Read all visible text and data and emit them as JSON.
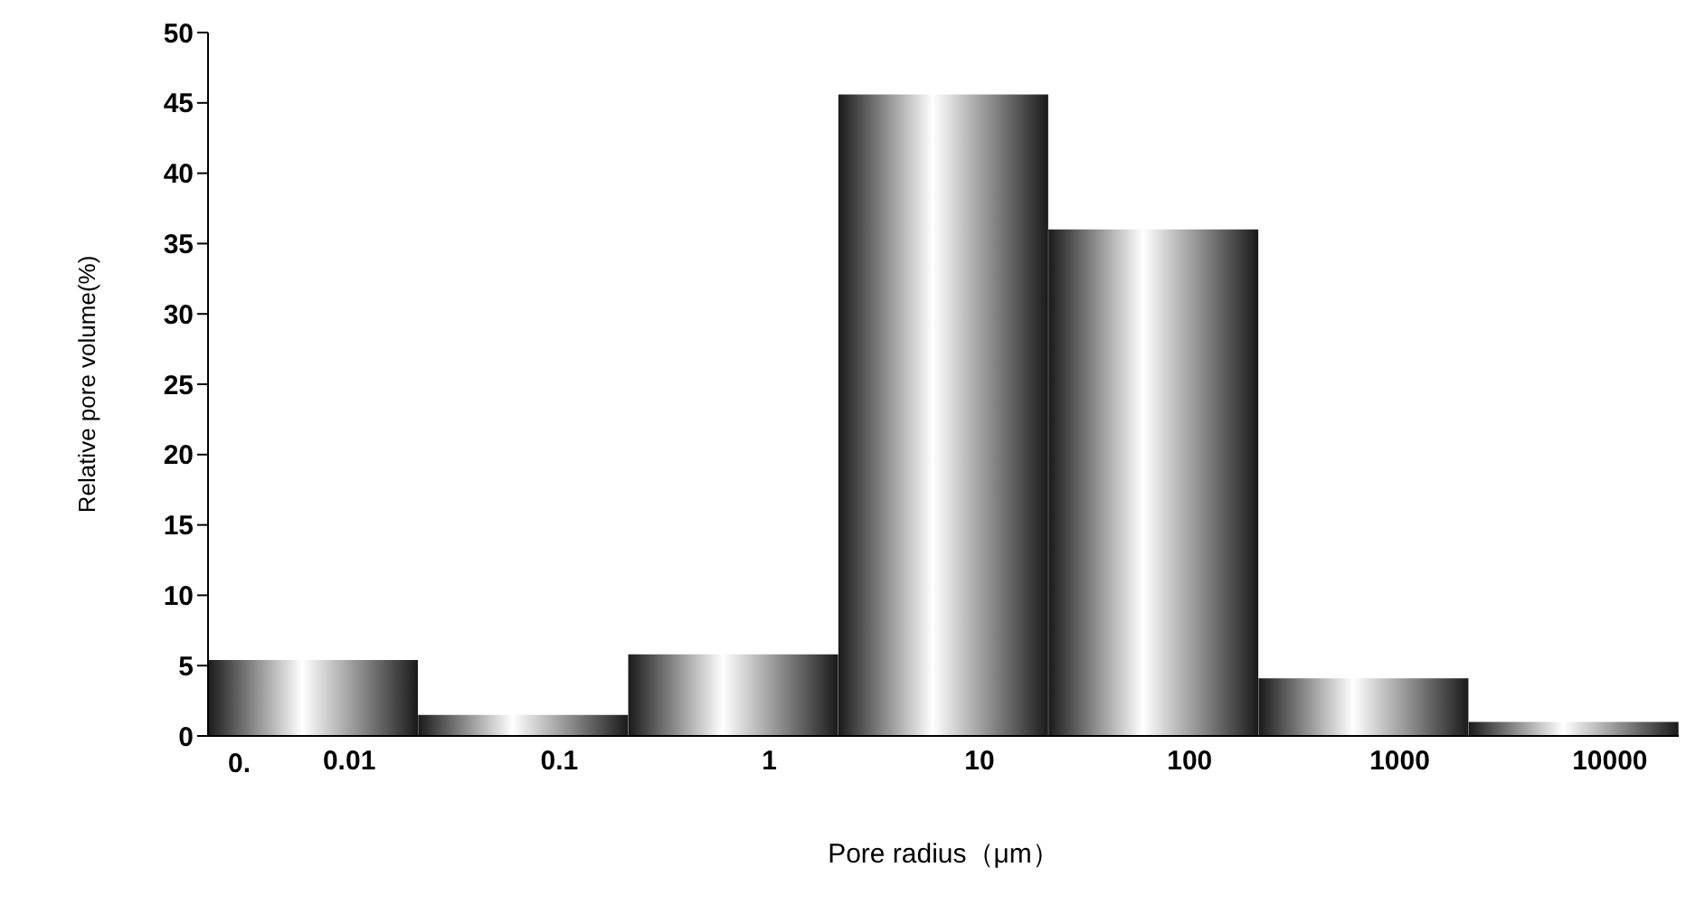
{
  "chart_data": {
    "type": "bar",
    "xlabel": "Pore radius（μm）",
    "ylabel": "Relative pore volume(%)",
    "categories": [
      "0.01",
      "0.1",
      "1",
      "10",
      "100",
      "1000",
      "10000"
    ],
    "values": [
      5.4,
      1.5,
      5.8,
      45.6,
      36.0,
      4.1,
      1.0
    ],
    "color": "#1a1a1a",
    "ylim": [
      0,
      50
    ],
    "yticks": [
      0,
      5,
      10,
      15,
      20,
      25,
      30,
      35,
      40,
      45,
      50
    ],
    "annotations": [
      "0."
    ],
    "grid": false,
    "legend": false
  }
}
